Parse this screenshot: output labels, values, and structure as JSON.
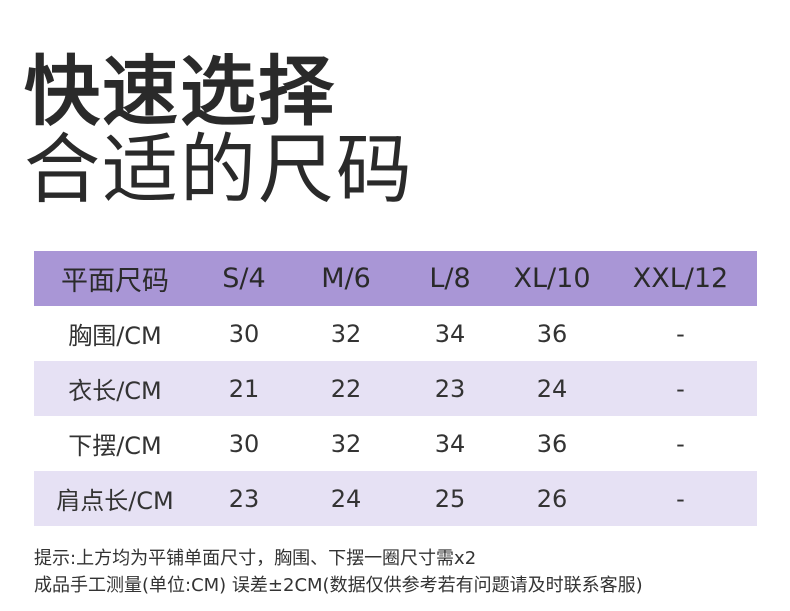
{
  "title": {
    "line1": "快速选择",
    "line2": "合适的尺码"
  },
  "table": {
    "headers": [
      "平面尺码",
      "S/4",
      "M/6",
      "L/8",
      "XL/10",
      "XXL/12"
    ],
    "rows": [
      {
        "label": "胸围/CM",
        "values": [
          "30",
          "32",
          "34",
          "36",
          "-"
        ]
      },
      {
        "label": "衣长/CM",
        "values": [
          "21",
          "22",
          "23",
          "24",
          "-"
        ]
      },
      {
        "label": "下摆/CM",
        "values": [
          "30",
          "32",
          "34",
          "36",
          "-"
        ]
      },
      {
        "label": "肩点长/CM",
        "values": [
          "23",
          "24",
          "25",
          "26",
          "-"
        ]
      }
    ]
  },
  "notes": {
    "line1": "提示:上方均为平铺单面尺寸，胸围、下摆一圈尺寸需x2",
    "line2": "成品手工测量(单位:CM) 误差±2CM(数据仅供参考若有问题请及时联系客服)"
  },
  "colors": {
    "header_bg": "#a996d6",
    "alt_row_bg": "#e6e1f4",
    "title_text": "#2a2a2a"
  }
}
